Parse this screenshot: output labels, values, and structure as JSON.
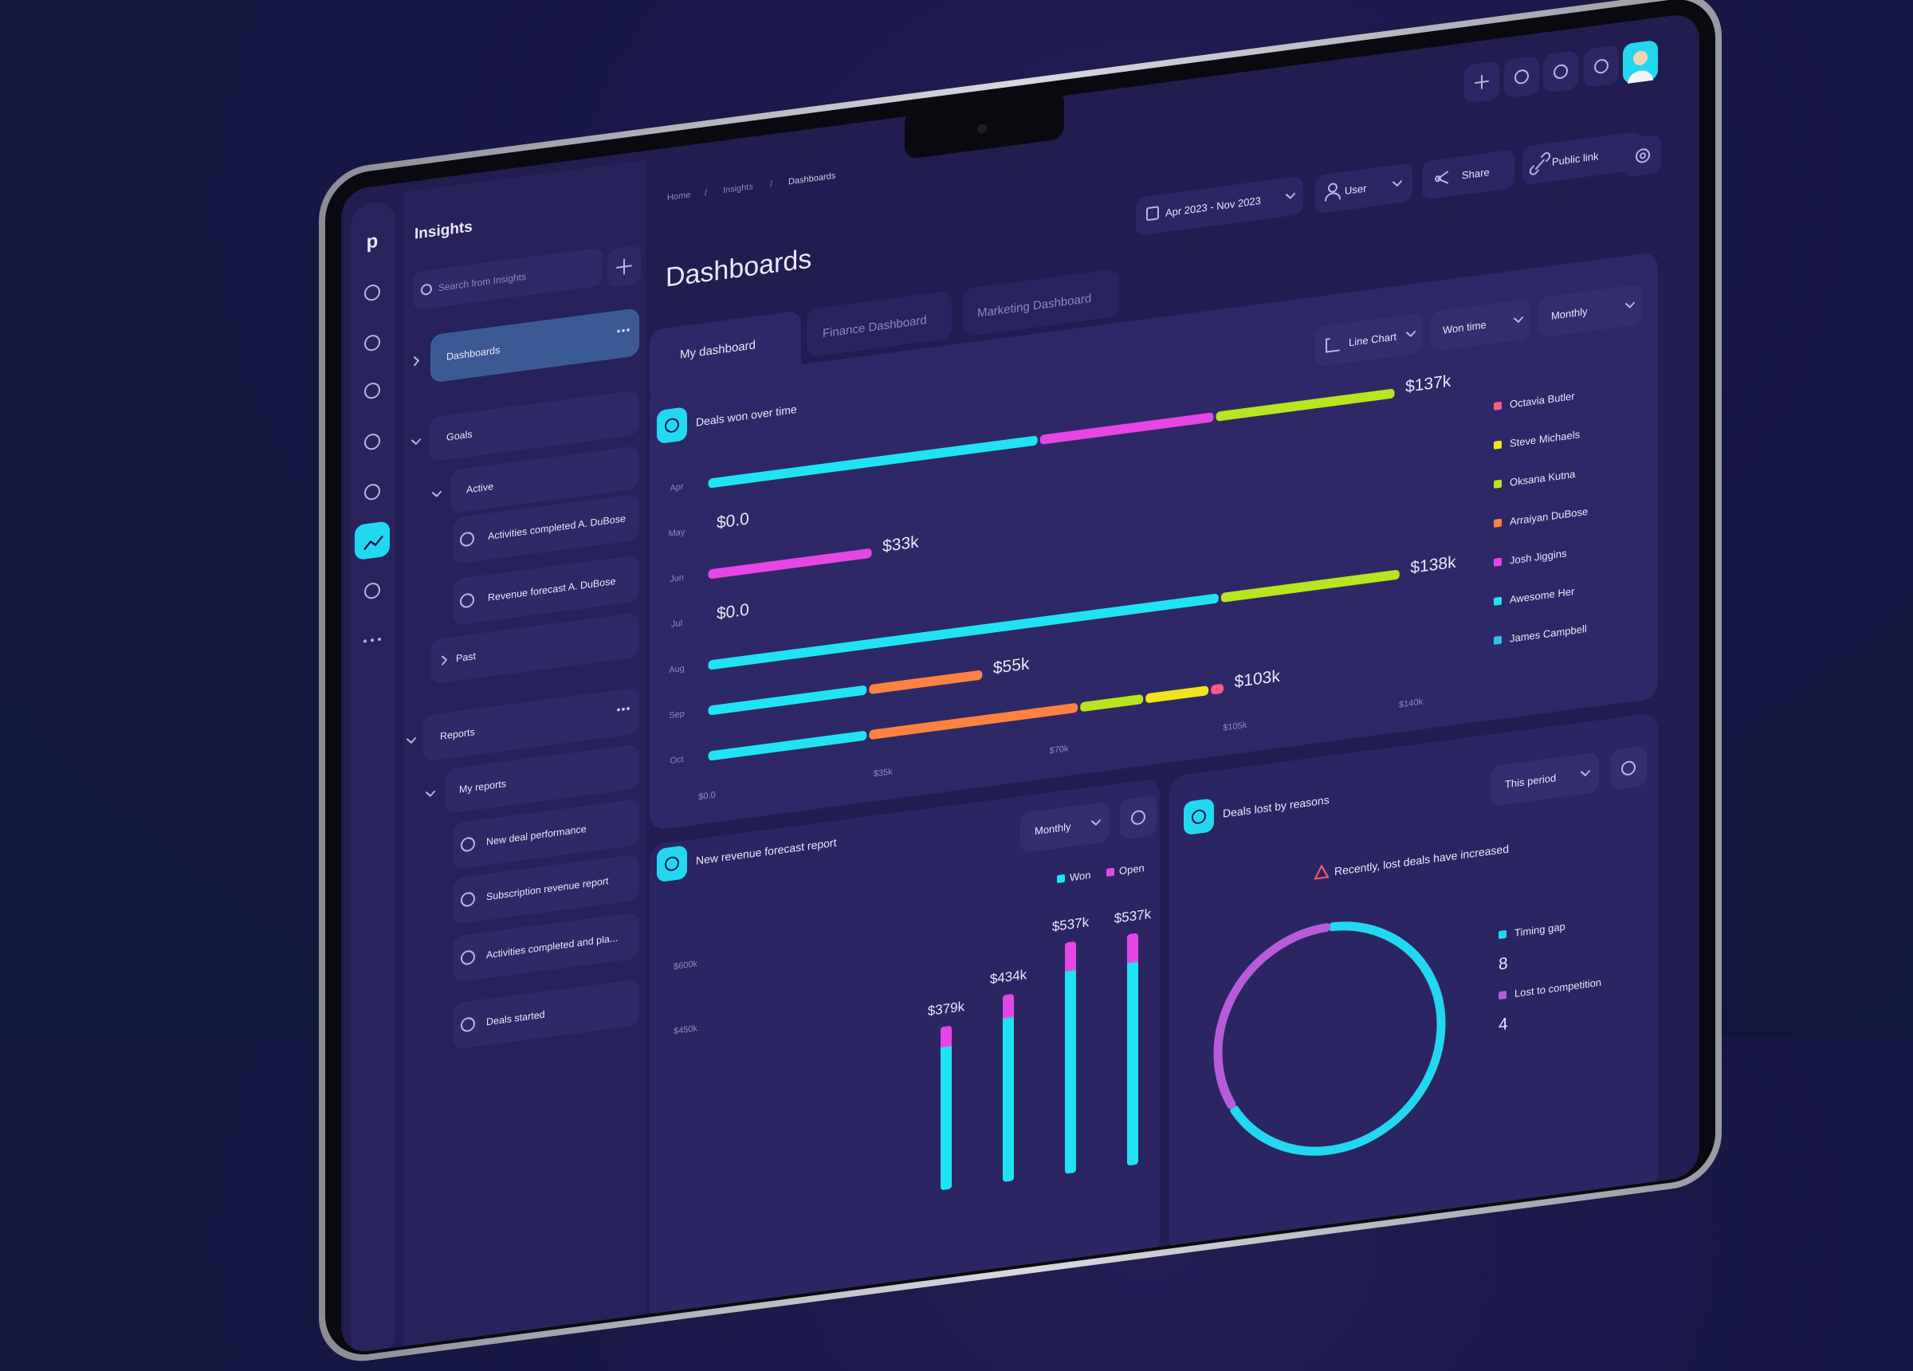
{
  "header": {
    "breadcrumb": [
      "Home",
      "Insights",
      "Dashboards"
    ],
    "title": "Dashboards",
    "date_range": "Apr 2023 - Nov 2023",
    "user": "User",
    "share": "Share",
    "public_link": "Public link"
  },
  "sidebar": {
    "logo": "p",
    "title": "Insights",
    "search_placeholder": "Search from Insights",
    "items": [
      "Dashboards",
      "Goals",
      "Active",
      "Activities completed A. DuBose",
      "Revenue forecast A. DuBose",
      "Past",
      "Reports",
      "My reports",
      "New deal performance",
      "Subscription revenue report",
      "Activities completed and pla...",
      "Deals started"
    ]
  },
  "tabs": [
    "My dashboard",
    "Finance Dashboard",
    "Marketing Dashboard"
  ],
  "chart_controls": [
    "Line Chart",
    "Won time",
    "Monthly"
  ],
  "chart_data": [
    {
      "type": "bar",
      "orientation": "horizontal",
      "stacked": true,
      "title": "Deals won over time",
      "categories": [
        "Apr",
        "May",
        "Jun",
        "Jul",
        "Aug",
        "Sep",
        "Oct"
      ],
      "series": [
        {
          "name": "Octavia Butler",
          "color": "#ff5a86",
          "values": [
            null,
            null,
            null,
            null,
            null,
            null,
            3
          ]
        },
        {
          "name": "Steve Michaels",
          "color": "#f2e31c",
          "values": [
            null,
            null,
            null,
            null,
            null,
            null,
            13
          ]
        },
        {
          "name": "Oksana Kutna",
          "color": "#b8e51e",
          "values": [
            36,
            null,
            null,
            null,
            36,
            null,
            13
          ]
        },
        {
          "name": "Arraiyan DuBose",
          "color": "#ff8240",
          "values": [
            null,
            null,
            null,
            null,
            null,
            23,
            42
          ]
        },
        {
          "name": "Josh Jiggins",
          "color": "#e646e6",
          "values": [
            35,
            null,
            33,
            null,
            null,
            null,
            null
          ]
        },
        {
          "name": "Awesome Her",
          "color": "#20e3f2",
          "values": [
            66,
            null,
            null,
            null,
            102,
            32,
            32
          ]
        },
        {
          "name": "James Campbell",
          "color": "#2fc2e8",
          "values": [
            null,
            null,
            null,
            null,
            null,
            null,
            null
          ]
        }
      ],
      "totals": [
        137,
        0,
        33,
        0,
        138,
        55,
        103
      ],
      "total_labels": [
        "$137k",
        "$0.0",
        "$33k",
        "$0.0",
        "$138k",
        "$55k",
        "$103k"
      ],
      "xlim": [
        0,
        140
      ],
      "xticks": [
        {
          "value": 0,
          "label": "$0.0"
        },
        {
          "value": 35,
          "label": "$35k"
        },
        {
          "value": 70,
          "label": "$70k"
        },
        {
          "value": 105,
          "label": "$105k"
        },
        {
          "value": 140,
          "label": "$140k"
        }
      ]
    },
    {
      "type": "bar",
      "title": "New revenue forecast report",
      "period": "Monthly",
      "series": [
        {
          "name": "Won",
          "color": "#20e3f2"
        },
        {
          "name": "Open",
          "color": "#e646e6"
        }
      ],
      "categories": [
        null,
        null,
        null,
        null
      ],
      "values": [
        379,
        434,
        537,
        537
      ],
      "value_labels": [
        "$379k",
        "$434k",
        "$537k",
        "$537k"
      ],
      "ylim": [
        0,
        620
      ],
      "yticks": [
        {
          "value": 450,
          "label": "$450k"
        },
        {
          "value": 600,
          "label": "$600k"
        }
      ]
    },
    {
      "type": "pie",
      "title": "Deals lost by reasons",
      "period": "This period",
      "note": "Recently, lost deals have increased",
      "categories": [
        "Timing gap",
        "Lost to competition"
      ],
      "values": [
        8,
        4
      ],
      "colors": [
        "#22d8ee",
        "#b65cd8"
      ]
    }
  ]
}
